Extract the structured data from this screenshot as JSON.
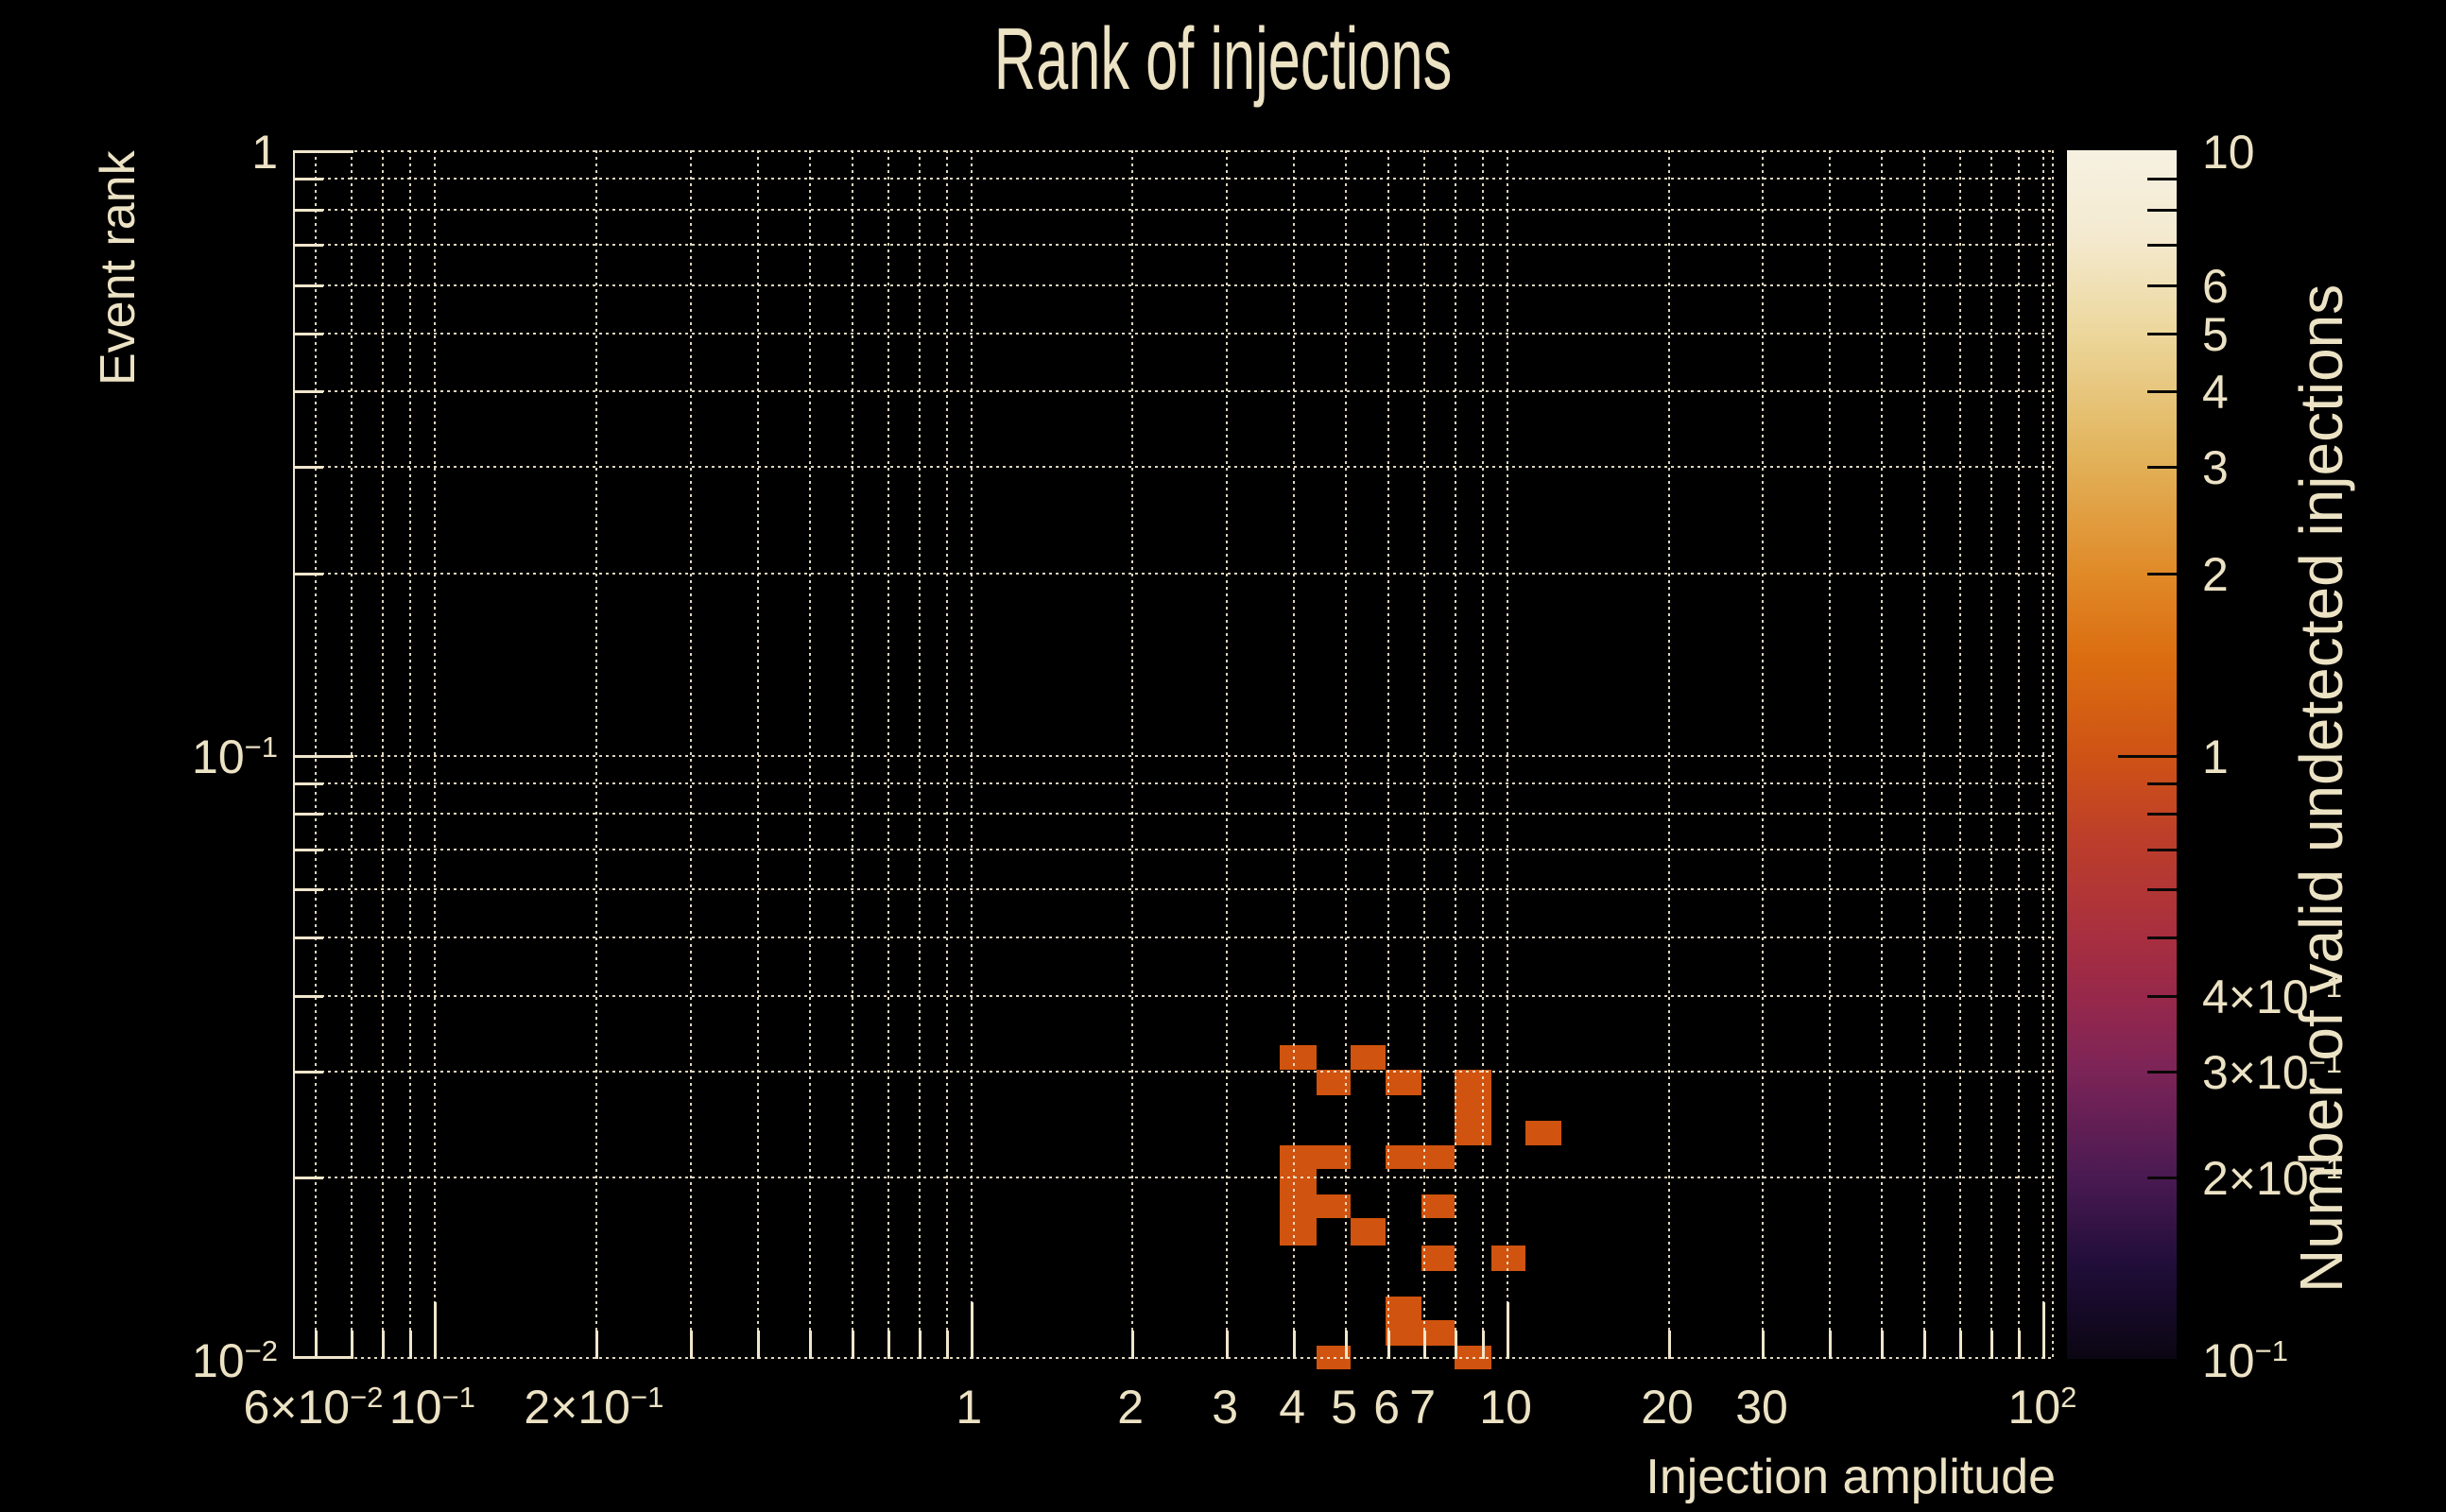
{
  "colors": {
    "background": "#000000",
    "text": "#ece2c4",
    "grid": "#f0e6cc",
    "cell": "#d0530f",
    "colorbar_tick": "#0a0808"
  },
  "chart_data": {
    "type": "heatmap",
    "title": "Rank of injections",
    "xlabel": "Injection amplitude",
    "ylabel": "Event rank",
    "colorbar_label": "Number of valid undetected injections",
    "grid": "on",
    "x_axis": {
      "scale": "log",
      "min": 0.055,
      "max": 105,
      "grid": [
        0.06,
        0.07,
        0.08,
        0.09,
        0.1,
        0.2,
        0.3,
        0.4,
        0.5,
        0.6,
        0.7,
        0.8,
        0.9,
        1,
        2,
        3,
        4,
        5,
        6,
        7,
        8,
        9,
        10,
        20,
        30,
        40,
        50,
        60,
        70,
        80,
        90,
        100
      ],
      "major": [
        0.1,
        1,
        10,
        100
      ],
      "tick_labels": [
        {
          "v": 0.06,
          "label": "6×10^−2"
        },
        {
          "v": 0.1,
          "label": "10^−1"
        },
        {
          "v": 0.2,
          "label": "2×10^−1"
        },
        {
          "v": 1,
          "label": "1"
        },
        {
          "v": 2,
          "label": "2"
        },
        {
          "v": 3,
          "label": "3"
        },
        {
          "v": 4,
          "label": "4"
        },
        {
          "v": 5,
          "label": "5"
        },
        {
          "v": 6,
          "label": "6"
        },
        {
          "v": 7,
          "label": "7"
        },
        {
          "v": 10,
          "label": "10"
        },
        {
          "v": 20,
          "label": "20"
        },
        {
          "v": 30,
          "label": "30"
        },
        {
          "v": 100,
          "label": "10^2"
        }
      ]
    },
    "y_axis": {
      "scale": "log",
      "min": 0.01,
      "max": 1,
      "grid": [
        1,
        0.9,
        0.8,
        0.7,
        0.6,
        0.5,
        0.4,
        0.3,
        0.2,
        0.1,
        0.09,
        0.08,
        0.07,
        0.06,
        0.05,
        0.04,
        0.03,
        0.02,
        0.01
      ],
      "major": [
        1,
        0.1,
        0.01
      ],
      "tick_labels": [
        {
          "v": 1,
          "label": "1"
        },
        {
          "v": 0.1,
          "label": "10^−1"
        },
        {
          "v": 0.01,
          "label": "10^−2"
        }
      ]
    },
    "colorbar": {
      "scale": "log",
      "min": 0.1,
      "max": 10,
      "gradient": [
        [
          0.0,
          "#0b0613"
        ],
        [
          0.075,
          "#1f0d38"
        ],
        [
          0.151,
          "#4a1a52"
        ],
        [
          0.239,
          "#7c2457"
        ],
        [
          0.298,
          "#97284b"
        ],
        [
          0.35,
          "#a82f3f"
        ],
        [
          0.43,
          "#bd3e2a"
        ],
        [
          0.5,
          "#cf5315"
        ],
        [
          0.58,
          "#db6d10"
        ],
        [
          0.65,
          "#e08a28"
        ],
        [
          0.75,
          "#e2b45c"
        ],
        [
          0.85,
          "#ecd79c"
        ],
        [
          0.93,
          "#f4ead0"
        ],
        [
          1.0,
          "#f6f1e1"
        ]
      ],
      "ticks": [
        0.2,
        0.3,
        0.4,
        0.5,
        0.6,
        0.7,
        0.8,
        0.9,
        1,
        2,
        3,
        4,
        5,
        6,
        7,
        8,
        9
      ],
      "major": [
        1
      ],
      "tick_labels": [
        {
          "v": 10,
          "label": "10"
        },
        {
          "v": 6,
          "label": "6"
        },
        {
          "v": 5,
          "label": "5"
        },
        {
          "v": 4,
          "label": "4"
        },
        {
          "v": 3,
          "label": "3"
        },
        {
          "v": 2,
          "label": "2"
        },
        {
          "v": 1,
          "label": "1"
        },
        {
          "v": 0.4,
          "label": "4×10^−1"
        },
        {
          "v": 0.3,
          "label": "3×10^−1"
        },
        {
          "v": 0.2,
          "label": "2×10^−1"
        },
        {
          "v": 0.1,
          "label": "10^−1"
        }
      ]
    },
    "x_bin_edges": [
      3.78,
      4.43,
      5.12,
      5.95,
      6.94,
      8.0,
      9.37,
      10.84,
      12.66
    ],
    "y_bin_edges": [
      0.033,
      0.0301,
      0.0273,
      0.0248,
      0.0226,
      0.0206,
      0.0187,
      0.0171,
      0.0154,
      0.014,
      0.0127,
      0.0116,
      0.0105,
      0.0096
    ],
    "cells": [
      {
        "x0": 3.78,
        "x1": 4.43,
        "y0": 0.0301,
        "y1": 0.033,
        "value": 1
      },
      {
        "x0": 5.12,
        "x1": 5.95,
        "y0": 0.0301,
        "y1": 0.033,
        "value": 1
      },
      {
        "x0": 4.43,
        "x1": 5.12,
        "y0": 0.0273,
        "y1": 0.0301,
        "value": 1
      },
      {
        "x0": 5.95,
        "x1": 6.94,
        "y0": 0.0273,
        "y1": 0.0301,
        "value": 1
      },
      {
        "x0": 8.0,
        "x1": 9.37,
        "y0": 0.0273,
        "y1": 0.0301,
        "value": 1
      },
      {
        "x0": 8.0,
        "x1": 9.37,
        "y0": 0.0248,
        "y1": 0.0273,
        "value": 1
      },
      {
        "x0": 8.0,
        "x1": 9.37,
        "y0": 0.0226,
        "y1": 0.0248,
        "value": 1
      },
      {
        "x0": 10.84,
        "x1": 12.66,
        "y0": 0.0226,
        "y1": 0.0248,
        "value": 1
      },
      {
        "x0": 3.78,
        "x1": 4.43,
        "y0": 0.0206,
        "y1": 0.0226,
        "value": 1
      },
      {
        "x0": 4.43,
        "x1": 5.12,
        "y0": 0.0206,
        "y1": 0.0226,
        "value": 1
      },
      {
        "x0": 5.95,
        "x1": 6.94,
        "y0": 0.0206,
        "y1": 0.0226,
        "value": 1
      },
      {
        "x0": 6.94,
        "x1": 8.0,
        "y0": 0.0206,
        "y1": 0.0226,
        "value": 1
      },
      {
        "x0": 3.78,
        "x1": 4.43,
        "y0": 0.0187,
        "y1": 0.0206,
        "value": 1
      },
      {
        "x0": 3.78,
        "x1": 4.43,
        "y0": 0.0171,
        "y1": 0.0187,
        "value": 1
      },
      {
        "x0": 4.43,
        "x1": 5.12,
        "y0": 0.0171,
        "y1": 0.0187,
        "value": 1
      },
      {
        "x0": 6.94,
        "x1": 8.0,
        "y0": 0.0171,
        "y1": 0.0187,
        "value": 1
      },
      {
        "x0": 3.78,
        "x1": 4.43,
        "y0": 0.0154,
        "y1": 0.0171,
        "value": 1
      },
      {
        "x0": 5.12,
        "x1": 5.95,
        "y0": 0.0154,
        "y1": 0.0171,
        "value": 1
      },
      {
        "x0": 6.94,
        "x1": 8.0,
        "y0": 0.014,
        "y1": 0.0154,
        "value": 1
      },
      {
        "x0": 9.37,
        "x1": 10.84,
        "y0": 0.014,
        "y1": 0.0154,
        "value": 1
      },
      {
        "x0": 5.95,
        "x1": 6.94,
        "y0": 0.0116,
        "y1": 0.0127,
        "value": 1
      },
      {
        "x0": 5.95,
        "x1": 6.94,
        "y0": 0.0105,
        "y1": 0.0116,
        "value": 1
      },
      {
        "x0": 6.94,
        "x1": 8.0,
        "y0": 0.0105,
        "y1": 0.0116,
        "value": 1
      },
      {
        "x0": 4.43,
        "x1": 5.12,
        "y0": 0.0096,
        "y1": 0.0105,
        "value": 1
      },
      {
        "x0": 8.0,
        "x1": 9.37,
        "y0": 0.0096,
        "y1": 0.0105,
        "value": 1
      }
    ]
  }
}
